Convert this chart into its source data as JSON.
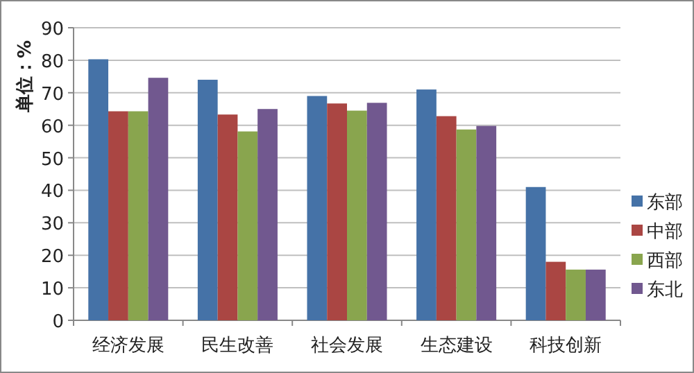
{
  "chart_data": {
    "type": "bar",
    "ylabel": "单位：%",
    "categories": [
      "经济发展",
      "民生改善",
      "社会发展",
      "生态建设",
      "科技创新"
    ],
    "series": [
      {
        "name": "东部",
        "color": "#4572a7",
        "values": [
          80.3,
          74,
          69,
          71,
          41
        ]
      },
      {
        "name": "中部",
        "color": "#aa4643",
        "values": [
          64.3,
          63.3,
          66.7,
          62.8,
          18
        ]
      },
      {
        "name": "西部",
        "color": "#89a54e",
        "values": [
          64.3,
          58.1,
          64.5,
          58.7,
          15.6
        ]
      },
      {
        "name": "东北",
        "color": "#71588f",
        "values": [
          74.6,
          65,
          66.9,
          59.8,
          15.6
        ]
      }
    ],
    "ylim": [
      0,
      90
    ],
    "yticks": [
      0,
      10,
      20,
      30,
      40,
      50,
      60,
      70,
      80,
      90
    ],
    "grid": "y",
    "legend": "right"
  }
}
